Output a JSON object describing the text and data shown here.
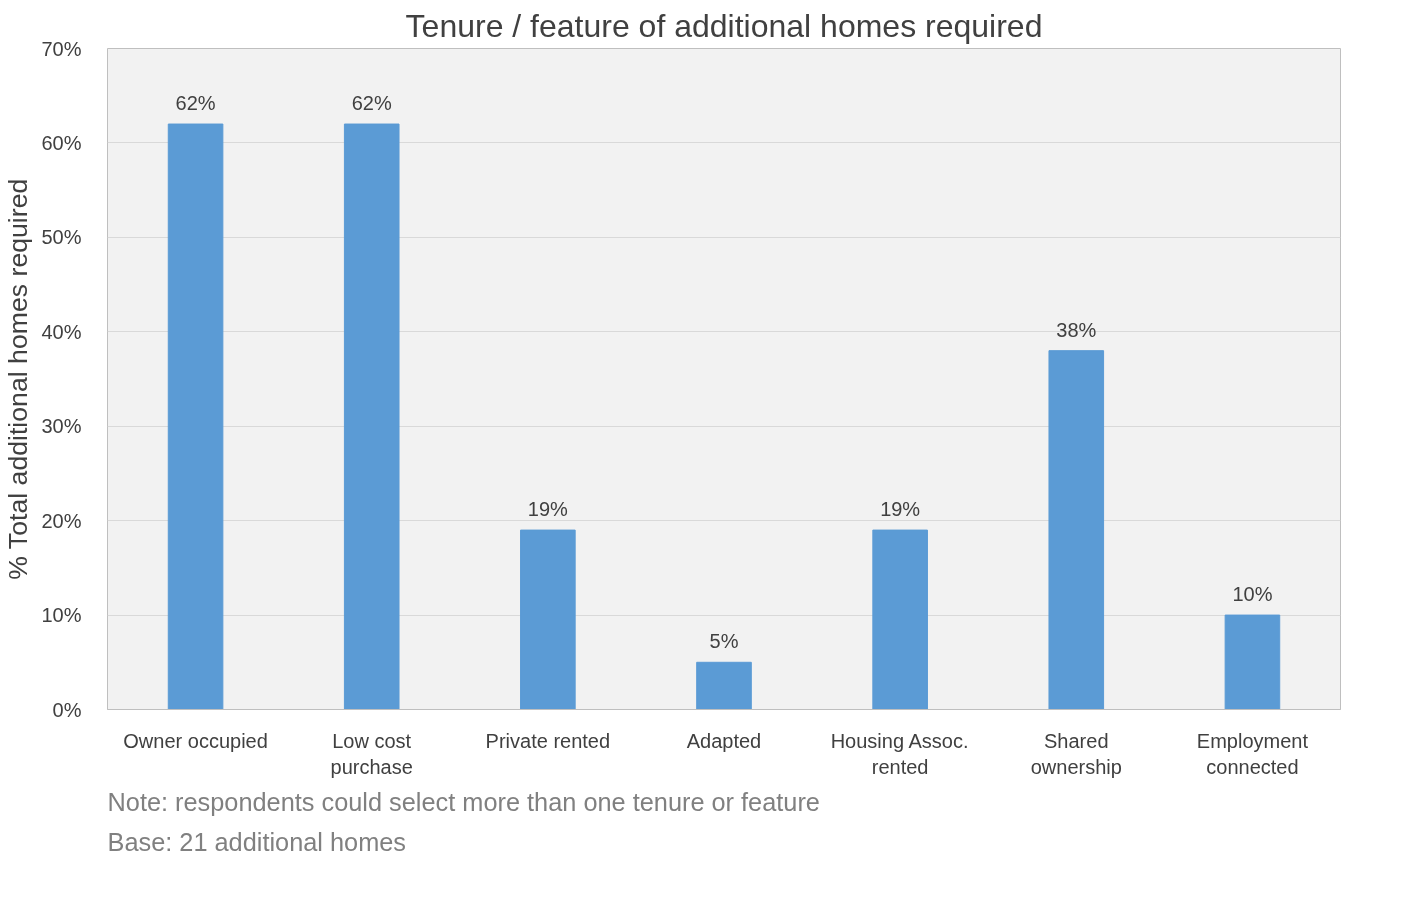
{
  "chart_data": {
    "type": "bar",
    "title": "Tenure / feature of additional homes required",
    "ylabel": "% Total additional homes required",
    "categories": [
      "Owner occupied",
      "Low cost purchase",
      "Private rented",
      "Adapted",
      "Housing Assoc. rented",
      "Shared ownership",
      "Employment connected"
    ],
    "values": [
      62,
      62,
      19,
      5,
      19,
      38,
      10
    ],
    "color": "#5b9bd5",
    "ylim": [
      0,
      70
    ],
    "yticks": [
      {
        "value": 0,
        "label": "0%"
      },
      {
        "value": 10,
        "label": "10%"
      },
      {
        "value": 20,
        "label": "20%"
      },
      {
        "value": 30,
        "label": "30%"
      },
      {
        "value": 40,
        "label": "40%"
      },
      {
        "value": 50,
        "label": "50%"
      },
      {
        "value": 60,
        "label": "60%"
      },
      {
        "value": 70,
        "label": "70%"
      }
    ],
    "value_labels": [
      "62%",
      "62%",
      "19%",
      "5%",
      "19%",
      "38%",
      "10%"
    ],
    "grid": "y",
    "annotations": [
      "Note: respondents could select more than one tenure or feature",
      "Base: 21 additional homes"
    ]
  }
}
